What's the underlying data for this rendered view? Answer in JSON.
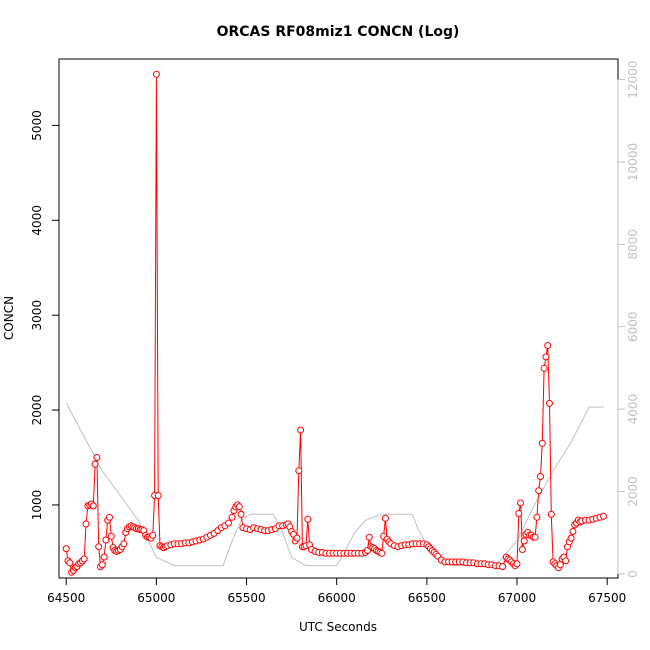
{
  "chart_data": {
    "type": "line",
    "title": "ORCAS RF08miz1 CONCN (Log)",
    "xlabel": "UTC Seconds",
    "ylabel": "CONCN",
    "xlim": [
      64460,
      67560
    ],
    "ylim": [
      230,
      5700
    ],
    "y2lim": [
      -100,
      12500
    ],
    "x_ticks": [
      64500,
      65000,
      65500,
      66000,
      66500,
      67000,
      67500
    ],
    "y_ticks": [
      1000,
      2000,
      3000,
      4000,
      5000
    ],
    "y2_ticks": [
      0,
      2000,
      4000,
      6000,
      8000,
      10000,
      12000
    ],
    "grid": false,
    "colors": {
      "concn": "#ff0000",
      "secondary": "#c0c0c0",
      "axis": "#000000"
    },
    "series": [
      {
        "axis": "left",
        "style": "points-and-lines",
        "points": [
          [
            64500,
            540
          ],
          [
            64510,
            410
          ],
          [
            64520,
            390
          ],
          [
            64530,
            290
          ],
          [
            64540,
            310
          ],
          [
            64550,
            340
          ],
          [
            64560,
            350
          ],
          [
            64570,
            380
          ],
          [
            64580,
            390
          ],
          [
            64590,
            410
          ],
          [
            64600,
            430
          ],
          [
            64610,
            800
          ],
          [
            64620,
            990
          ],
          [
            64630,
            1000
          ],
          [
            64640,
            1010
          ],
          [
            64650,
            990
          ],
          [
            64660,
            1430
          ],
          [
            64670,
            1500
          ],
          [
            64680,
            560
          ],
          [
            64690,
            350
          ],
          [
            64700,
            370
          ],
          [
            64710,
            450
          ],
          [
            64720,
            630
          ],
          [
            64730,
            840
          ],
          [
            64740,
            870
          ],
          [
            64750,
            670
          ],
          [
            64760,
            550
          ],
          [
            64770,
            520
          ],
          [
            64780,
            510
          ],
          [
            64790,
            520
          ],
          [
            64800,
            530
          ],
          [
            64810,
            560
          ],
          [
            64820,
            590
          ],
          [
            64830,
            710
          ],
          [
            64840,
            750
          ],
          [
            64850,
            770
          ],
          [
            64860,
            780
          ],
          [
            64870,
            770
          ],
          [
            64880,
            760
          ],
          [
            64890,
            750
          ],
          [
            64900,
            750
          ],
          [
            64910,
            740
          ],
          [
            64920,
            740
          ],
          [
            64930,
            730
          ],
          [
            64940,
            680
          ],
          [
            64950,
            660
          ],
          [
            64960,
            660
          ],
          [
            64970,
            650
          ],
          [
            64980,
            680
          ],
          [
            64990,
            1100
          ],
          [
            65000,
            5540
          ],
          [
            65010,
            1100
          ],
          [
            65020,
            570
          ],
          [
            65030,
            560
          ],
          [
            65040,
            550
          ],
          [
            65050,
            560
          ],
          [
            65060,
            570
          ],
          [
            65080,
            580
          ],
          [
            65100,
            590
          ],
          [
            65120,
            590
          ],
          [
            65140,
            590
          ],
          [
            65160,
            600
          ],
          [
            65180,
            600
          ],
          [
            65200,
            610
          ],
          [
            65220,
            620
          ],
          [
            65240,
            630
          ],
          [
            65260,
            640
          ],
          [
            65280,
            660
          ],
          [
            65300,
            680
          ],
          [
            65320,
            700
          ],
          [
            65340,
            730
          ],
          [
            65360,
            760
          ],
          [
            65380,
            780
          ],
          [
            65400,
            810
          ],
          [
            65420,
            870
          ],
          [
            65430,
            940
          ],
          [
            65440,
            980
          ],
          [
            65450,
            1000
          ],
          [
            65460,
            980
          ],
          [
            65470,
            900
          ],
          [
            65480,
            760
          ],
          [
            65500,
            750
          ],
          [
            65520,
            740
          ],
          [
            65540,
            760
          ],
          [
            65560,
            750
          ],
          [
            65580,
            740
          ],
          [
            65600,
            730
          ],
          [
            65620,
            730
          ],
          [
            65640,
            740
          ],
          [
            65660,
            750
          ],
          [
            65680,
            780
          ],
          [
            65700,
            780
          ],
          [
            65720,
            790
          ],
          [
            65730,
            800
          ],
          [
            65740,
            770
          ],
          [
            65750,
            720
          ],
          [
            65760,
            690
          ],
          [
            65770,
            620
          ],
          [
            65780,
            650
          ],
          [
            65790,
            1360
          ],
          [
            65800,
            1790
          ],
          [
            65810,
            560
          ],
          [
            65820,
            560
          ],
          [
            65830,
            570
          ],
          [
            65840,
            850
          ],
          [
            65850,
            580
          ],
          [
            65860,
            530
          ],
          [
            65880,
            510
          ],
          [
            65900,
            500
          ],
          [
            65920,
            500
          ],
          [
            65940,
            490
          ],
          [
            65960,
            490
          ],
          [
            65980,
            490
          ],
          [
            66000,
            490
          ],
          [
            66020,
            490
          ],
          [
            66040,
            490
          ],
          [
            66060,
            490
          ],
          [
            66080,
            490
          ],
          [
            66100,
            490
          ],
          [
            66120,
            490
          ],
          [
            66140,
            490
          ],
          [
            66160,
            500
          ],
          [
            66170,
            520
          ],
          [
            66180,
            660
          ],
          [
            66190,
            560
          ],
          [
            66200,
            550
          ],
          [
            66210,
            540
          ],
          [
            66220,
            520
          ],
          [
            66230,
            510
          ],
          [
            66240,
            500
          ],
          [
            66250,
            490
          ],
          [
            66260,
            670
          ],
          [
            66270,
            860
          ],
          [
            66280,
            640
          ],
          [
            66290,
            610
          ],
          [
            66300,
            590
          ],
          [
            66320,
            570
          ],
          [
            66340,
            560
          ],
          [
            66360,
            570
          ],
          [
            66380,
            580
          ],
          [
            66400,
            580
          ],
          [
            66420,
            590
          ],
          [
            66440,
            590
          ],
          [
            66460,
            590
          ],
          [
            66480,
            590
          ],
          [
            66500,
            580
          ],
          [
            66510,
            560
          ],
          [
            66520,
            540
          ],
          [
            66530,
            520
          ],
          [
            66540,
            500
          ],
          [
            66550,
            480
          ],
          [
            66560,
            460
          ],
          [
            66580,
            420
          ],
          [
            66600,
            400
          ],
          [
            66620,
            400
          ],
          [
            66640,
            400
          ],
          [
            66660,
            400
          ],
          [
            66680,
            400
          ],
          [
            66700,
            400
          ],
          [
            66720,
            390
          ],
          [
            66740,
            390
          ],
          [
            66760,
            390
          ],
          [
            66780,
            380
          ],
          [
            66800,
            380
          ],
          [
            66820,
            380
          ],
          [
            66840,
            370
          ],
          [
            66860,
            370
          ],
          [
            66880,
            360
          ],
          [
            66900,
            360
          ],
          [
            66920,
            350
          ],
          [
            66940,
            450
          ],
          [
            66950,
            430
          ],
          [
            66960,
            420
          ],
          [
            66970,
            400
          ],
          [
            66980,
            380
          ],
          [
            66990,
            360
          ],
          [
            67000,
            380
          ],
          [
            67010,
            910
          ],
          [
            67020,
            1020
          ],
          [
            67030,
            530
          ],
          [
            67040,
            620
          ],
          [
            67050,
            690
          ],
          [
            67060,
            710
          ],
          [
            67070,
            680
          ],
          [
            67080,
            680
          ],
          [
            67090,
            660
          ],
          [
            67100,
            660
          ],
          [
            67110,
            870
          ],
          [
            67120,
            1150
          ],
          [
            67130,
            1300
          ],
          [
            67140,
            1650
          ],
          [
            67150,
            2440
          ],
          [
            67160,
            2560
          ],
          [
            67170,
            2680
          ],
          [
            67180,
            2070
          ],
          [
            67190,
            900
          ],
          [
            67200,
            400
          ],
          [
            67210,
            380
          ],
          [
            67220,
            360
          ],
          [
            67230,
            340
          ],
          [
            67240,
            370
          ],
          [
            67250,
            430
          ],
          [
            67260,
            450
          ],
          [
            67270,
            410
          ],
          [
            67280,
            560
          ],
          [
            67290,
            610
          ],
          [
            67300,
            650
          ],
          [
            67310,
            720
          ],
          [
            67320,
            790
          ],
          [
            67330,
            810
          ],
          [
            67340,
            840
          ],
          [
            67350,
            820
          ],
          [
            67360,
            830
          ],
          [
            67380,
            840
          ],
          [
            67400,
            840
          ],
          [
            67420,
            850
          ],
          [
            67440,
            860
          ],
          [
            67460,
            870
          ],
          [
            67480,
            880
          ]
        ]
      },
      {
        "axis": "right",
        "style": "line",
        "points": [
          [
            64500,
            4150
          ],
          [
            64700,
            2500
          ],
          [
            64900,
            1300
          ],
          [
            65000,
            400
          ],
          [
            65100,
            200
          ],
          [
            65200,
            200
          ],
          [
            65300,
            200
          ],
          [
            65370,
            200
          ],
          [
            65420,
            800
          ],
          [
            65470,
            1300
          ],
          [
            65520,
            1450
          ],
          [
            65650,
            1450
          ],
          [
            65700,
            1000
          ],
          [
            65750,
            400
          ],
          [
            65830,
            200
          ],
          [
            65950,
            200
          ],
          [
            66000,
            200
          ],
          [
            66040,
            500
          ],
          [
            66100,
            1000
          ],
          [
            66160,
            1300
          ],
          [
            66250,
            1450
          ],
          [
            66420,
            1450
          ],
          [
            66450,
            1100
          ],
          [
            66500,
            700
          ],
          [
            66560,
            400
          ],
          [
            66640,
            200
          ],
          [
            66880,
            200
          ],
          [
            67000,
            800
          ],
          [
            67100,
            1700
          ],
          [
            67200,
            2500
          ],
          [
            67300,
            3200
          ],
          [
            67400,
            4050
          ],
          [
            67480,
            4050
          ]
        ]
      }
    ]
  }
}
